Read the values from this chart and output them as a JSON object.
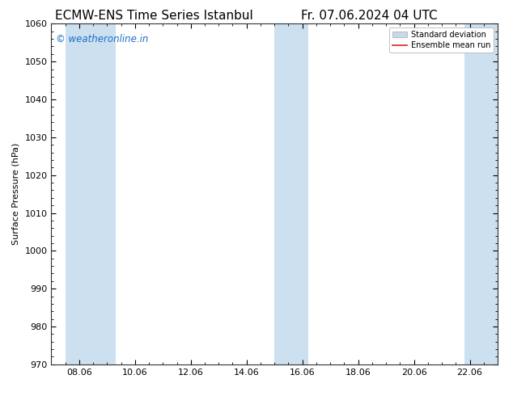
{
  "title_left": "ECMW-ENS Time Series Istanbul",
  "title_right": "Fr. 07.06.2024 04 UTC",
  "ylabel": "Surface Pressure (hPa)",
  "ylim": [
    970,
    1060
  ],
  "yticks": [
    970,
    980,
    990,
    1000,
    1010,
    1020,
    1030,
    1040,
    1050,
    1060
  ],
  "xtick_labels": [
    "08.06",
    "10.06",
    "12.06",
    "14.06",
    "16.06",
    "18.06",
    "20.06",
    "22.06"
  ],
  "shade_color": "#cce0f0",
  "watermark_text": "© weatheronline.in",
  "watermark_color": "#1a6fc4",
  "legend_std_color": "#c8d8e8",
  "legend_std_edge": "#aaaaaa",
  "legend_mean_color": "#dd2222",
  "background_color": "#ffffff",
  "title_fontsize": 11,
  "label_fontsize": 8,
  "tick_fontsize": 8,
  "watermark_fontsize": 8.5
}
